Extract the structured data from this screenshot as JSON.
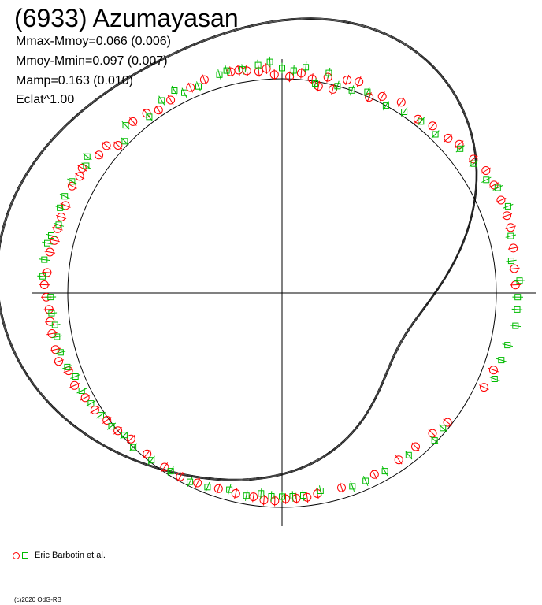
{
  "title": "(6933) Azumayasan",
  "stats": [
    "Mmax-Mmoy=0.066 (0.006)",
    "Mmoy-Mmin=0.097 (0.007)",
    "Mamp=0.163 (0.010)",
    "Eclat^1.00"
  ],
  "legend_label": "Eric Barbotin et al.",
  "copyright": "(c)2020 OdG-RB",
  "chart_data": {
    "type": "scatter",
    "projection": "polar",
    "title": "(6933) Azumayasan",
    "theta_units": "degrees",
    "reference_radius": 1.0,
    "grid": false,
    "axes": "crosshair",
    "legend": "bottom-left",
    "series": [
      {
        "name": "Eric Barbotin et al.",
        "marker": "circle",
        "color": "#ff0000",
        "points": [
          [
            92,
            1.02
          ],
          [
            94,
            1.05
          ],
          [
            96,
            1.04
          ],
          [
            99,
            1.05
          ],
          [
            101,
            1.06
          ],
          [
            103,
            1.06
          ],
          [
            110,
            1.06
          ],
          [
            114,
            1.05
          ],
          [
            120,
            1.04
          ],
          [
            124,
            1.03
          ],
          [
            127,
            1.05
          ],
          [
            131,
            1.06
          ],
          [
            138,
            1.03
          ],
          [
            140,
            1.07
          ],
          [
            143,
            1.07
          ],
          [
            148,
            1.1
          ],
          [
            150,
            1.09
          ],
          [
            153,
            1.1
          ],
          [
            158,
            1.09
          ],
          [
            161,
            1.09
          ],
          [
            164,
            1.09
          ],
          [
            167,
            1.09
          ],
          [
            170,
            1.1
          ],
          [
            175,
            1.1
          ],
          [
            178,
            1.11
          ],
          [
            181,
            1.1
          ],
          [
            184,
            1.09
          ],
          [
            187,
            1.09
          ],
          [
            190,
            1.09
          ],
          [
            194,
            1.09
          ],
          [
            197,
            1.09
          ],
          [
            200,
            1.06
          ],
          [
            204,
            1.06
          ],
          [
            208,
            1.04
          ],
          [
            212,
            1.03
          ],
          [
            216,
            1.01
          ],
          [
            220,
            1.0
          ],
          [
            224,
            0.98
          ],
          [
            230,
            0.98
          ],
          [
            236,
            0.98
          ],
          [
            241,
            0.98
          ],
          [
            246,
            0.97
          ],
          [
            252,
            0.96
          ],
          [
            257,
            0.96
          ],
          [
            262,
            0.96
          ],
          [
            265,
            0.97
          ],
          [
            268,
            0.97
          ],
          [
            271,
            0.96
          ],
          [
            274,
            0.96
          ],
          [
            277,
            0.96
          ],
          [
            280,
            0.95
          ],
          [
            287,
            0.95
          ],
          [
            297,
            0.95
          ],
          [
            305,
            0.95
          ],
          [
            311,
            0.95
          ],
          [
            317,
            0.96
          ],
          [
            322,
            0.98
          ],
          [
            335,
            1.04
          ],
          [
            340,
            1.05
          ],
          [
            2,
            1.09
          ],
          [
            6,
            1.09
          ],
          [
            11,
            1.1
          ],
          [
            16,
            1.11
          ],
          [
            19,
            1.11
          ],
          [
            23,
            1.11
          ],
          [
            27,
            1.11
          ],
          [
            31,
            1.11
          ],
          [
            35,
            1.09
          ],
          [
            40,
            1.08
          ],
          [
            43,
            1.06
          ],
          [
            48,
            1.05
          ],
          [
            52,
            1.03
          ],
          [
            58,
            1.05
          ],
          [
            63,
            1.03
          ],
          [
            66,
            1.0
          ],
          [
            70,
            1.05
          ],
          [
            73,
            1.04
          ],
          [
            76,
            0.98
          ],
          [
            78,
            1.03
          ],
          [
            80,
            0.98
          ],
          [
            82,
            1.01
          ],
          [
            85,
            1.03
          ],
          [
            88,
            1.01
          ]
        ]
      },
      {
        "name": "Eric Barbotin et al.",
        "marker": "square",
        "color": "#00bb00",
        "points": [
          [
            93,
            1.08
          ],
          [
            96,
            1.07
          ],
          [
            100,
            1.06
          ],
          [
            104,
            1.07
          ],
          [
            106,
            1.06
          ],
          [
            112,
            1.04
          ],
          [
            116,
            1.04
          ],
          [
            118,
            1.07
          ],
          [
            122,
            1.06
          ],
          [
            127,
            1.03
          ],
          [
            133,
            1.07
          ],
          [
            136,
            1.02
          ],
          [
            145,
            1.11
          ],
          [
            147,
            1.09
          ],
          [
            152,
            1.11
          ],
          [
            156,
            1.11
          ],
          [
            159,
            1.11
          ],
          [
            163,
            1.09
          ],
          [
            166,
            1.11
          ],
          [
            168,
            1.12
          ],
          [
            172,
            1.12
          ],
          [
            176,
            1.12
          ],
          [
            181,
            1.08
          ],
          [
            185,
            1.08
          ],
          [
            188,
            1.07
          ],
          [
            191,
            1.07
          ],
          [
            195,
            1.07
          ],
          [
            199,
            1.06
          ],
          [
            202,
            1.04
          ],
          [
            206,
            1.04
          ],
          [
            210,
            1.03
          ],
          [
            214,
            1.02
          ],
          [
            218,
            1.01
          ],
          [
            222,
            0.99
          ],
          [
            226,
            1.0
          ],
          [
            232,
            0.99
          ],
          [
            238,
            0.98
          ],
          [
            244,
            0.98
          ],
          [
            249,
            0.97
          ],
          [
            255,
            0.95
          ],
          [
            260,
            0.96
          ],
          [
            264,
            0.94
          ],
          [
            267,
            0.95
          ],
          [
            270,
            0.95
          ],
          [
            273,
            0.95
          ],
          [
            276,
            0.95
          ],
          [
            281,
            0.94
          ],
          [
            290,
            0.96
          ],
          [
            294,
            0.96
          ],
          [
            300,
            0.96
          ],
          [
            308,
            0.96
          ],
          [
            316,
            0.99
          ],
          [
            320,
            0.98
          ],
          [
            338,
            1.07
          ],
          [
            343,
            1.07
          ],
          [
            347,
            1.08
          ],
          [
            352,
            1.1
          ],
          [
            356,
            1.1
          ],
          [
            359,
            1.1
          ],
          [
            3,
            1.11
          ],
          [
            8,
            1.08
          ],
          [
            14,
            1.1
          ],
          [
            21,
            1.13
          ],
          [
            26,
            1.12
          ],
          [
            29,
            1.09
          ],
          [
            34,
            1.08
          ],
          [
            39,
            1.07
          ],
          [
            46,
            1.03
          ],
          [
            51,
            1.03
          ],
          [
            56,
            1.02
          ],
          [
            61,
            1.0
          ],
          [
            67,
            1.02
          ],
          [
            71,
            1.0
          ],
          [
            75,
            1.0
          ],
          [
            78,
            1.05
          ],
          [
            81,
            0.99
          ],
          [
            84,
            1.06
          ],
          [
            87,
            1.04
          ],
          [
            90,
            1.05
          ]
        ]
      }
    ]
  }
}
